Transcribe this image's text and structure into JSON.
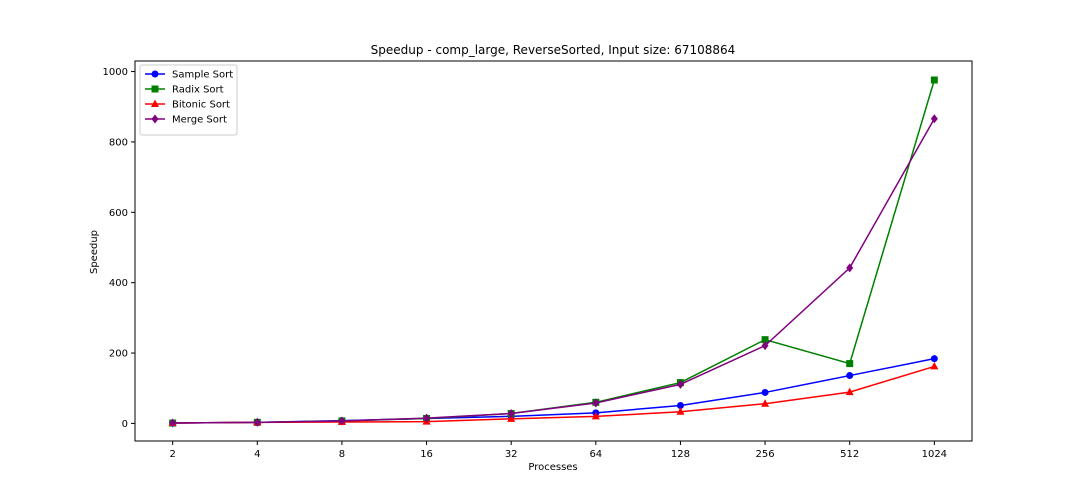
{
  "chart_data": {
    "type": "line",
    "title": "Speedup - comp_large, ReverseSorted, Input size: 67108864",
    "xlabel": "Processes",
    "ylabel": "Speedup",
    "x_scale": "log2",
    "categories": [
      "2",
      "4",
      "8",
      "16",
      "32",
      "64",
      "128",
      "256",
      "512",
      "1024"
    ],
    "x": [
      2,
      4,
      8,
      16,
      32,
      64,
      128,
      256,
      512,
      1024
    ],
    "ylim": [
      -50,
      1030
    ],
    "yticks": [
      0,
      200,
      400,
      600,
      800,
      1000
    ],
    "grid": false,
    "legend_position": "top-left",
    "series": [
      {
        "name": "Sample Sort",
        "color": "#0000ff",
        "marker": "circle",
        "values": [
          1,
          3,
          8,
          14,
          20,
          30,
          51,
          88,
          136,
          184
        ]
      },
      {
        "name": "Radix Sort",
        "color": "#008000",
        "marker": "square",
        "values": [
          1,
          3,
          7,
          14,
          28,
          60,
          116,
          238,
          170,
          976
        ]
      },
      {
        "name": "Bitonic Sort",
        "color": "#ff0000",
        "marker": "triangle",
        "values": [
          1,
          3,
          4,
          5,
          13,
          20,
          33,
          56,
          89,
          162
        ]
      },
      {
        "name": "Merge Sort",
        "color": "#800080",
        "marker": "diamond",
        "values": [
          1,
          3,
          7,
          15,
          28,
          58,
          111,
          221,
          442,
          866
        ]
      }
    ]
  }
}
